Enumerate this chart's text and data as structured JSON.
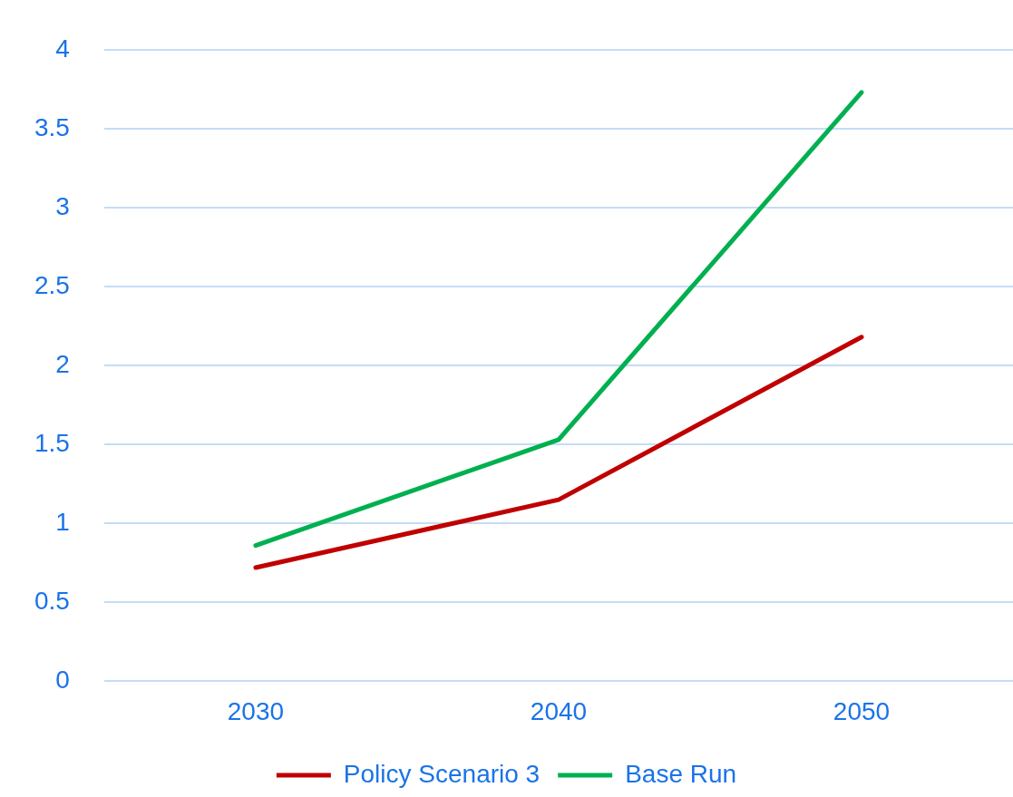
{
  "chart_data": {
    "type": "line",
    "categories": [
      "2030",
      "2040",
      "2050"
    ],
    "series": [
      {
        "name": "Policy Scenario 3",
        "color": "#c00000",
        "values": [
          0.72,
          1.15,
          2.18
        ]
      },
      {
        "name": "Base Run",
        "color": "#00b050",
        "values": [
          0.86,
          1.53,
          3.73
        ]
      }
    ],
    "ylim": [
      0,
      4
    ],
    "yticks": [
      0,
      0.5,
      1,
      1.5,
      2,
      2.5,
      3,
      3.5,
      4
    ],
    "grid": "y",
    "legend": "bottom",
    "marker": "none",
    "line_style": "solid"
  }
}
